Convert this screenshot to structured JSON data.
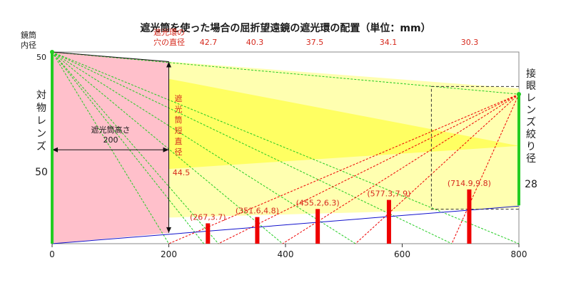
{
  "title": "遮光筒を使った場合の屈折望遠鏡の遮光環の配置（単位：mm）",
  "tube_inner_label": [
    "鏡筒",
    "内径"
  ],
  "tube_inner_value": "50",
  "objective_label": "対物レンズ",
  "objective_value": "50",
  "hole_diameter_label": [
    "遮光環の",
    "穴の直径"
  ],
  "hole_diameters": [
    "42.7",
    "40.3",
    "37.5",
    "34.1",
    "30.3"
  ],
  "shade_height_label": "遮光筒高さ",
  "shade_height_value": "200",
  "short_diameter_label": [
    "遮",
    "光",
    "筒",
    "短",
    "直",
    "径"
  ],
  "short_diameter_value": "44.5",
  "eyepiece_label": [
    "接",
    "眼",
    "レ",
    "ン",
    "ズ",
    "絞",
    "り",
    "径"
  ],
  "eyepiece_value": "28",
  "colors": {
    "shade": "#ffc0cb",
    "cone": "#ffffb0",
    "cone_core": "#ffff55",
    "green": "#22cc22",
    "baffle": "#ee0000",
    "red_text": "#d62a1e",
    "blue": "#1111cc"
  },
  "chart_data": {
    "type": "diagram",
    "xlim": [
      0,
      800
    ],
    "ylim": [
      0,
      50
    ],
    "xticks": [
      0,
      200,
      400,
      600,
      800
    ],
    "tube": {
      "objective_x": 0,
      "objective_height": 50,
      "tube_end_x": 800,
      "tube_end_height": 9.8
    },
    "shade_tube": {
      "length": 200,
      "end_height": 0.25
    },
    "eyepiece": {
      "x": 800,
      "top": 39,
      "bottom": 10
    },
    "baffles": [
      {
        "x": 267,
        "h": 3.7,
        "label": "(267,3.7)"
      },
      {
        "x": 351.6,
        "h": 4.8,
        "label": "(351.6,4.8)"
      },
      {
        "x": 455.2,
        "h": 6.3,
        "label": "(455.2,6.3)"
      },
      {
        "x": 577.3,
        "h": 7.9,
        "label": "(577.3,7.9)"
      },
      {
        "x": 714.9,
        "h": 9.8,
        "label": "(714.9,9.8)"
      }
    ]
  }
}
